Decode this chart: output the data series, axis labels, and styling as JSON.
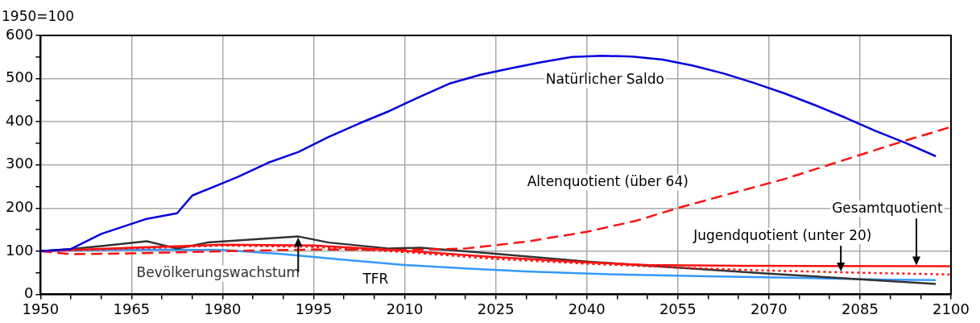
{
  "chart_data": {
    "type": "line",
    "ylabel": "1950=100",
    "xlim": [
      1950,
      2100
    ],
    "ylim": [
      0,
      600
    ],
    "xticks": [
      1950,
      {
        "value": 1955,
        "label": null
      },
      {
        "value": 1960,
        "label": null
      },
      1965,
      {
        "value": 1970,
        "label": null
      },
      {
        "value": 1975,
        "label": null
      },
      1980,
      {
        "value": 1985,
        "label": null
      },
      {
        "value": 1990,
        "label": null
      },
      1995,
      {
        "value": 2000,
        "label": null
      },
      {
        "value": 2005,
        "label": null
      },
      2010,
      {
        "value": 2015,
        "label": null
      },
      {
        "value": 2020,
        "label": null
      },
      2025,
      {
        "value": 2030,
        "label": null
      },
      {
        "value": 2035,
        "label": null
      },
      2040,
      {
        "value": 2045,
        "label": null
      },
      {
        "value": 2050,
        "label": null
      },
      2055,
      {
        "value": 2060,
        "label": null
      },
      {
        "value": 2065,
        "label": null
      },
      2070,
      {
        "value": 2075,
        "label": null
      },
      {
        "value": 2080,
        "label": null
      },
      2085,
      {
        "value": 2090,
        "label": null
      },
      {
        "value": 2095,
        "label": null
      },
      2100
    ],
    "yticks": [
      0,
      {
        "value": 50,
        "label": null
      },
      100,
      {
        "value": 150,
        "label": null
      },
      200,
      {
        "value": 250,
        "label": null
      },
      300,
      {
        "value": 350,
        "label": null
      },
      400,
      {
        "value": 450,
        "label": null
      },
      500,
      {
        "value": 550,
        "label": null
      },
      600
    ],
    "grid": true,
    "legend": false,
    "marker": "none",
    "series": [
      {
        "name": "Natürlicher Saldo",
        "color": "#0000dd",
        "line_style": "solid",
        "x": [
          1950,
          1955,
          1960,
          1967.5,
          1972.5,
          1975,
          1982.5,
          1987.5,
          1992.5,
          1997.5,
          2002.5,
          2007.5,
          2012.5,
          2017.5,
          2022.5,
          2027.5,
          2032.5,
          2037.5,
          2042.5,
          2047.5,
          2052.5,
          2057.5,
          2062.5,
          2067.5,
          2072.5,
          2077.5,
          2082.5,
          2087.5,
          2092.5,
          2097.5
        ],
        "values": [
          100,
          105,
          140,
          175,
          188,
          229,
          272,
          305,
          330,
          365,
          396,
          425,
          458,
          489,
          509,
          524,
          538,
          550,
          553,
          551,
          544,
          530,
          512,
          490,
          466,
          439,
          410,
          379,
          351,
          320
        ]
      },
      {
        "name": "Altenquotient (über 64)",
        "color": "#ff1111",
        "line_style": "dashed",
        "x": [
          1950,
          1955,
          1965,
          1980,
          1995,
          2010,
          2020,
          2030,
          2040,
          2048,
          2055,
          2062,
          2072.5,
          2091.5,
          2100
        ],
        "values": [
          100,
          93,
          95,
          100,
          104,
          103,
          106,
          122,
          145,
          170,
          200,
          227,
          267,
          352,
          388
        ]
      },
      {
        "name": "Gesamtquotient",
        "color": "#ff1111",
        "line_style": "solid",
        "x": [
          1950,
          1965,
          1980,
          1995,
          2010,
          2025,
          2040,
          2050,
          2065,
          2100
        ],
        "values": [
          100,
          108,
          115,
          113,
          101,
          86,
          74,
          68,
          66,
          65
        ]
      },
      {
        "name": "Jugendquotient (unter 20)",
        "color": "#ff1111",
        "line_style": "dotted",
        "x": [
          1950,
          1965,
          1980,
          1995,
          2010,
          2025,
          2040,
          2055,
          2070,
          2085,
          2100
        ],
        "values": [
          100,
          106,
          113,
          110,
          98,
          82,
          71,
          62,
          55,
          50,
          46
        ]
      },
      {
        "name": "Bevölkerungswachstum",
        "color": "#333333",
        "line_style": "solid",
        "x": [
          1950,
          1955,
          1960,
          1967.5,
          1972.5,
          1977.5,
          1992.5,
          1997.5,
          2007.5,
          2012.5,
          2022.5,
          2040,
          2055,
          2070,
          2085,
          2097.5
        ],
        "values": [
          100,
          105,
          112,
          123,
          106,
          120,
          134,
          120,
          106,
          108,
          97,
          76,
          62,
          48,
          35,
          24
        ]
      },
      {
        "name": "TFR",
        "color": "#3399ff",
        "line_style": "solid",
        "x": [
          1950,
          1965,
          1980,
          1990,
          2000,
          2010,
          2020,
          2030,
          2045,
          2060,
          2075,
          2090,
          2097.5
        ],
        "values": [
          100,
          104,
          103,
          93,
          80,
          68,
          60,
          53,
          46,
          42,
          38,
          34,
          33
        ]
      }
    ]
  }
}
